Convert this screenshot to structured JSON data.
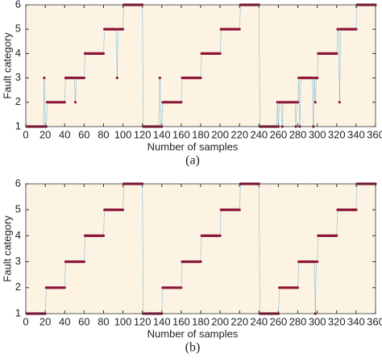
{
  "chart_data": [
    {
      "type": "line",
      "caption": "(a)",
      "xlabel": "Number of samples",
      "ylabel": "Fault category",
      "xlim": [
        0,
        360
      ],
      "xticks": [
        0,
        20,
        40,
        60,
        80,
        100,
        120,
        140,
        160,
        180,
        200,
        220,
        240,
        260,
        280,
        300,
        320,
        340,
        360
      ],
      "ylim": [
        1,
        6
      ],
      "yticks": [
        1,
        2,
        3,
        4,
        5,
        6
      ],
      "grid": false,
      "color": "#8b1538",
      "line_color": "#4a9fd0",
      "x": [
        1,
        2,
        3,
        4,
        5,
        6,
        7,
        8,
        9,
        10,
        11,
        12,
        13,
        14,
        15,
        16,
        17,
        18,
        19,
        20,
        21,
        22,
        23,
        24,
        25,
        26,
        27,
        28,
        29,
        30,
        31,
        32,
        33,
        34,
        35,
        36,
        37,
        38,
        39,
        40,
        41,
        42,
        43,
        44,
        45,
        46,
        47,
        48,
        49,
        50,
        51,
        52,
        53,
        54,
        55,
        56,
        57,
        58,
        59,
        60,
        61,
        62,
        63,
        64,
        65,
        66,
        67,
        68,
        69,
        70,
        71,
        72,
        73,
        74,
        75,
        76,
        77,
        78,
        79,
        80,
        81,
        82,
        83,
        84,
        85,
        86,
        87,
        88,
        89,
        90,
        91,
        92,
        93,
        94,
        95,
        96,
        97,
        98,
        99,
        100,
        101,
        102,
        103,
        104,
        105,
        106,
        107,
        108,
        109,
        110,
        111,
        112,
        113,
        114,
        115,
        116,
        117,
        118,
        119,
        120,
        121,
        122,
        123,
        124,
        125,
        126,
        127,
        128,
        129,
        130,
        131,
        132,
        133,
        134,
        135,
        136,
        137,
        138,
        139,
        140,
        141,
        142,
        143,
        144,
        145,
        146,
        147,
        148,
        149,
        150,
        151,
        152,
        153,
        154,
        155,
        156,
        157,
        158,
        159,
        160,
        161,
        162,
        163,
        164,
        165,
        166,
        167,
        168,
        169,
        170,
        171,
        172,
        173,
        174,
        175,
        176,
        177,
        178,
        179,
        180,
        181,
        182,
        183,
        184,
        185,
        186,
        187,
        188,
        189,
        190,
        191,
        192,
        193,
        194,
        195,
        196,
        197,
        198,
        199,
        200,
        201,
        202,
        203,
        204,
        205,
        206,
        207,
        208,
        209,
        210,
        211,
        212,
        213,
        214,
        215,
        216,
        217,
        218,
        219,
        220,
        221,
        222,
        223,
        224,
        225,
        226,
        227,
        228,
        229,
        230,
        231,
        232,
        233,
        234,
        235,
        236,
        237,
        238,
        239,
        240,
        241,
        242,
        243,
        244,
        245,
        246,
        247,
        248,
        249,
        250,
        251,
        252,
        253,
        254,
        255,
        256,
        257,
        258,
        259,
        260,
        261,
        262,
        263,
        264,
        265,
        266,
        267,
        268,
        269,
        270,
        271,
        272,
        273,
        274,
        275,
        276,
        277,
        278,
        279,
        280,
        281,
        282,
        283,
        284,
        285,
        286,
        287,
        288,
        289,
        290,
        291,
        292,
        293,
        294,
        295,
        296,
        297,
        298,
        299,
        300,
        301,
        302,
        303,
        304,
        305,
        306,
        307,
        308,
        309,
        310,
        311,
        312,
        313,
        314,
        315,
        316,
        317,
        318,
        319,
        320,
        321,
        322,
        323,
        324,
        325,
        326,
        327,
        328,
        329,
        330,
        331,
        332,
        333,
        334,
        335,
        336,
        337,
        338,
        339,
        340,
        341,
        342,
        343,
        344,
        345,
        346,
        347,
        348,
        349,
        350,
        351,
        352,
        353,
        354,
        355,
        356,
        357,
        358,
        359,
        360
      ],
      "values": [
        1,
        1,
        1,
        1,
        1,
        1,
        1,
        1,
        1,
        1,
        1,
        1,
        1,
        1,
        1,
        1,
        1,
        1,
        3,
        1,
        1,
        2,
        2,
        2,
        2,
        2,
        2,
        2,
        2,
        2,
        2,
        2,
        2,
        2,
        2,
        2,
        2,
        2,
        2,
        2,
        3,
        3,
        3,
        3,
        3,
        3,
        3,
        3,
        3,
        3,
        2,
        3,
        3,
        3,
        3,
        3,
        3,
        3,
        3,
        3,
        4,
        4,
        4,
        4,
        4,
        4,
        4,
        4,
        4,
        4,
        4,
        4,
        4,
        4,
        4,
        4,
        4,
        4,
        4,
        4,
        5,
        5,
        5,
        5,
        5,
        5,
        5,
        5,
        5,
        5,
        5,
        5,
        5,
        3,
        5,
        5,
        5,
        5,
        5,
        5,
        6,
        6,
        6,
        6,
        6,
        6,
        6,
        6,
        6,
        6,
        6,
        6,
        6,
        6,
        6,
        6,
        6,
        6,
        6,
        6,
        1,
        1,
        1,
        1,
        1,
        1,
        1,
        1,
        1,
        1,
        1,
        1,
        1,
        1,
        1,
        1,
        1,
        3,
        1,
        1,
        2,
        2,
        2,
        2,
        2,
        2,
        2,
        2,
        2,
        2,
        2,
        2,
        2,
        2,
        2,
        2,
        2,
        2,
        2,
        2,
        3,
        3,
        3,
        3,
        3,
        3,
        3,
        3,
        3,
        3,
        3,
        3,
        3,
        3,
        3,
        3,
        3,
        3,
        3,
        3,
        4,
        4,
        4,
        4,
        4,
        4,
        4,
        4,
        4,
        4,
        4,
        4,
        4,
        4,
        4,
        4,
        4,
        4,
        4,
        4,
        5,
        5,
        5,
        5,
        5,
        5,
        5,
        5,
        5,
        5,
        5,
        5,
        5,
        5,
        5,
        5,
        5,
        5,
        5,
        5,
        6,
        6,
        6,
        6,
        6,
        6,
        6,
        6,
        6,
        6,
        6,
        6,
        6,
        6,
        6,
        6,
        6,
        6,
        6,
        6,
        1,
        1,
        1,
        1,
        1,
        1,
        1,
        1,
        1,
        1,
        1,
        1,
        1,
        1,
        1,
        1,
        1,
        1,
        2,
        1,
        2,
        2,
        2,
        1,
        2,
        2,
        2,
        2,
        2,
        2,
        2,
        2,
        2,
        2,
        2,
        2,
        2,
        1,
        2,
        2,
        3,
        1,
        3,
        3,
        3,
        3,
        3,
        3,
        3,
        3,
        3,
        3,
        3,
        3,
        3,
        1,
        3,
        2,
        3,
        3,
        4,
        4,
        4,
        4,
        4,
        4,
        4,
        4,
        4,
        4,
        4,
        4,
        4,
        4,
        4,
        4,
        4,
        4,
        4,
        4,
        5,
        5,
        2,
        5,
        5,
        5,
        5,
        5,
        5,
        5,
        5,
        5,
        5,
        5,
        5,
        5,
        5,
        5,
        5,
        5,
        6,
        6,
        6,
        6,
        6,
        6,
        6,
        6,
        6,
        6,
        6,
        6,
        6,
        6,
        6,
        6,
        6,
        6,
        6,
        6
      ]
    },
    {
      "type": "line",
      "caption": "(b)",
      "xlabel": "Number of samples",
      "ylabel": "Fault category",
      "xlim": [
        0,
        360
      ],
      "xticks": [
        0,
        20,
        40,
        60,
        80,
        100,
        120,
        140,
        160,
        180,
        200,
        220,
        240,
        260,
        280,
        300,
        320,
        340,
        360
      ],
      "ylim": [
        1,
        6
      ],
      "yticks": [
        1,
        2,
        3,
        4,
        5,
        6
      ],
      "grid": false,
      "color": "#8b1538",
      "line_color": "#4a9fd0",
      "x": [
        1,
        2,
        3,
        4,
        5,
        6,
        7,
        8,
        9,
        10,
        11,
        12,
        13,
        14,
        15,
        16,
        17,
        18,
        19,
        20,
        21,
        22,
        23,
        24,
        25,
        26,
        27,
        28,
        29,
        30,
        31,
        32,
        33,
        34,
        35,
        36,
        37,
        38,
        39,
        40,
        41,
        42,
        43,
        44,
        45,
        46,
        47,
        48,
        49,
        50,
        51,
        52,
        53,
        54,
        55,
        56,
        57,
        58,
        59,
        60,
        61,
        62,
        63,
        64,
        65,
        66,
        67,
        68,
        69,
        70,
        71,
        72,
        73,
        74,
        75,
        76,
        77,
        78,
        79,
        80,
        81,
        82,
        83,
        84,
        85,
        86,
        87,
        88,
        89,
        90,
        91,
        92,
        93,
        94,
        95,
        96,
        97,
        98,
        99,
        100,
        101,
        102,
        103,
        104,
        105,
        106,
        107,
        108,
        109,
        110,
        111,
        112,
        113,
        114,
        115,
        116,
        117,
        118,
        119,
        120,
        121,
        122,
        123,
        124,
        125,
        126,
        127,
        128,
        129,
        130,
        131,
        132,
        133,
        134,
        135,
        136,
        137,
        138,
        139,
        140,
        141,
        142,
        143,
        144,
        145,
        146,
        147,
        148,
        149,
        150,
        151,
        152,
        153,
        154,
        155,
        156,
        157,
        158,
        159,
        160,
        161,
        162,
        163,
        164,
        165,
        166,
        167,
        168,
        169,
        170,
        171,
        172,
        173,
        174,
        175,
        176,
        177,
        178,
        179,
        180,
        181,
        182,
        183,
        184,
        185,
        186,
        187,
        188,
        189,
        190,
        191,
        192,
        193,
        194,
        195,
        196,
        197,
        198,
        199,
        200,
        201,
        202,
        203,
        204,
        205,
        206,
        207,
        208,
        209,
        210,
        211,
        212,
        213,
        214,
        215,
        216,
        217,
        218,
        219,
        220,
        221,
        222,
        223,
        224,
        225,
        226,
        227,
        228,
        229,
        230,
        231,
        232,
        233,
        234,
        235,
        236,
        237,
        238,
        239,
        240,
        241,
        242,
        243,
        244,
        245,
        246,
        247,
        248,
        249,
        250,
        251,
        252,
        253,
        254,
        255,
        256,
        257,
        258,
        259,
        260,
        261,
        262,
        263,
        264,
        265,
        266,
        267,
        268,
        269,
        270,
        271,
        272,
        273,
        274,
        275,
        276,
        277,
        278,
        279,
        280,
        281,
        282,
        283,
        284,
        285,
        286,
        287,
        288,
        289,
        290,
        291,
        292,
        293,
        294,
        295,
        296,
        297,
        298,
        299,
        300,
        301,
        302,
        303,
        304,
        305,
        306,
        307,
        308,
        309,
        310,
        311,
        312,
        313,
        314,
        315,
        316,
        317,
        318,
        319,
        320,
        321,
        322,
        323,
        324,
        325,
        326,
        327,
        328,
        329,
        330,
        331,
        332,
        333,
        334,
        335,
        336,
        337,
        338,
        339,
        340,
        341,
        342,
        343,
        344,
        345,
        346,
        347,
        348,
        349,
        350,
        351,
        352,
        353,
        354,
        355,
        356,
        357,
        358,
        359,
        360
      ],
      "values": [
        1,
        1,
        1,
        1,
        1,
        1,
        1,
        1,
        1,
        1,
        1,
        1,
        1,
        1,
        1,
        1,
        1,
        1,
        1,
        1,
        2,
        2,
        2,
        2,
        2,
        2,
        2,
        2,
        2,
        2,
        2,
        2,
        2,
        2,
        2,
        2,
        2,
        2,
        2,
        2,
        3,
        3,
        3,
        3,
        3,
        3,
        3,
        3,
        3,
        3,
        3,
        3,
        3,
        3,
        3,
        3,
        3,
        3,
        3,
        3,
        4,
        4,
        4,
        4,
        4,
        4,
        4,
        4,
        4,
        4,
        4,
        4,
        4,
        4,
        4,
        4,
        4,
        4,
        4,
        4,
        5,
        5,
        5,
        5,
        5,
        5,
        5,
        5,
        5,
        5,
        5,
        5,
        5,
        5,
        5,
        5,
        5,
        5,
        5,
        5,
        6,
        6,
        6,
        6,
        6,
        6,
        6,
        6,
        6,
        6,
        6,
        6,
        6,
        6,
        6,
        6,
        6,
        6,
        6,
        6,
        1,
        1,
        1,
        1,
        1,
        1,
        1,
        1,
        1,
        1,
        1,
        1,
        1,
        1,
        1,
        1,
        1,
        1,
        1,
        1,
        2,
        2,
        2,
        2,
        2,
        2,
        2,
        2,
        2,
        2,
        2,
        2,
        2,
        2,
        2,
        2,
        2,
        2,
        2,
        2,
        3,
        3,
        3,
        3,
        3,
        3,
        3,
        3,
        3,
        3,
        3,
        3,
        3,
        3,
        3,
        3,
        3,
        3,
        3,
        3,
        4,
        4,
        4,
        4,
        4,
        4,
        4,
        4,
        4,
        4,
        4,
        4,
        4,
        4,
        4,
        4,
        4,
        4,
        4,
        4,
        5,
        5,
        5,
        5,
        5,
        5,
        5,
        5,
        5,
        5,
        5,
        5,
        5,
        5,
        5,
        5,
        5,
        5,
        5,
        5,
        6,
        6,
        6,
        6,
        6,
        6,
        6,
        6,
        6,
        6,
        6,
        6,
        6,
        6,
        6,
        6,
        6,
        6,
        6,
        6,
        1,
        1,
        1,
        1,
        1,
        1,
        1,
        1,
        1,
        1,
        1,
        1,
        1,
        1,
        1,
        1,
        1,
        1,
        1,
        1,
        2,
        2,
        2,
        2,
        2,
        2,
        2,
        2,
        2,
        2,
        2,
        2,
        2,
        2,
        2,
        2,
        2,
        2,
        2,
        2,
        3,
        3,
        3,
        3,
        3,
        3,
        3,
        3,
        3,
        3,
        3,
        3,
        3,
        3,
        3,
        3,
        3,
        1,
        3,
        3,
        4,
        4,
        4,
        4,
        4,
        4,
        4,
        4,
        4,
        4,
        4,
        4,
        4,
        4,
        4,
        4,
        4,
        4,
        4,
        4,
        5,
        5,
        5,
        5,
        5,
        5,
        5,
        5,
        5,
        5,
        5,
        5,
        5,
        5,
        5,
        5,
        5,
        5,
        5,
        5,
        6,
        6,
        6,
        6,
        6,
        6,
        6,
        6,
        6,
        6,
        6,
        6,
        6,
        6,
        6,
        6,
        6,
        6,
        6,
        6
      ]
    }
  ]
}
